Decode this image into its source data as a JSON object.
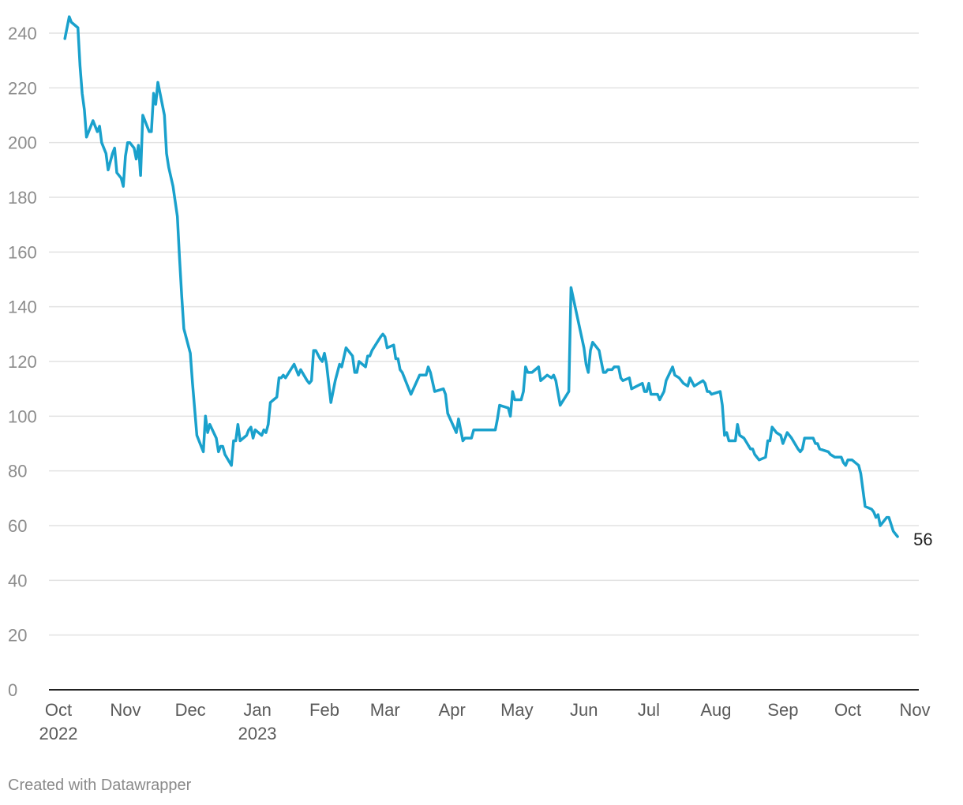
{
  "chart_data": {
    "type": "line",
    "title": "",
    "xlabel": "",
    "ylabel": "",
    "ylim": [
      0,
      250
    ],
    "yticks": [
      "0",
      "20",
      "40",
      "60",
      "80",
      "100",
      "120",
      "140",
      "160",
      "180",
      "200",
      "220",
      "240"
    ],
    "xticks": [
      {
        "label": "Oct",
        "year": "2022",
        "day": 0
      },
      {
        "label": "Nov",
        "year": "",
        "day": 31
      },
      {
        "label": "Dec",
        "year": "",
        "day": 61
      },
      {
        "label": "Jan",
        "year": "2023",
        "day": 92
      },
      {
        "label": "Feb",
        "year": "",
        "day": 123
      },
      {
        "label": "Mar",
        "year": "",
        "day": 151
      },
      {
        "label": "Apr",
        "year": "",
        "day": 182
      },
      {
        "label": "May",
        "year": "",
        "day": 212
      },
      {
        "label": "Jun",
        "year": "",
        "day": 243
      },
      {
        "label": "Jul",
        "year": "",
        "day": 273
      },
      {
        "label": "Aug",
        "year": "",
        "day": 304
      },
      {
        "label": "Sep",
        "year": "",
        "day": 335
      },
      {
        "label": "Oct",
        "year": "",
        "day": 365
      },
      {
        "label": "Nov",
        "year": "",
        "day": 396
      }
    ],
    "x_unit": "days since 2022-10-01",
    "line_color": "#1aa1cc",
    "end_label": "56",
    "series": [
      {
        "name": "value",
        "points": [
          [
            3,
            238
          ],
          [
            5,
            246
          ],
          [
            6,
            244
          ],
          [
            9,
            242
          ],
          [
            10,
            228
          ],
          [
            11,
            218
          ],
          [
            12,
            212
          ],
          [
            13,
            202
          ],
          [
            16,
            208
          ],
          [
            18,
            204
          ],
          [
            19,
            206
          ],
          [
            20,
            200
          ],
          [
            22,
            196
          ],
          [
            23,
            190
          ],
          [
            25,
            196
          ],
          [
            26,
            198
          ],
          [
            27,
            189
          ],
          [
            29,
            187
          ],
          [
            30,
            184
          ],
          [
            31,
            195
          ],
          [
            32,
            200
          ],
          [
            33,
            200
          ],
          [
            35,
            198
          ],
          [
            36,
            194
          ],
          [
            37,
            199
          ],
          [
            38,
            188
          ],
          [
            39,
            210
          ],
          [
            40,
            208
          ],
          [
            41,
            206
          ],
          [
            42,
            204
          ],
          [
            43,
            204
          ],
          [
            44,
            218
          ],
          [
            45,
            214
          ],
          [
            46,
            222
          ],
          [
            47,
            218
          ],
          [
            49,
            210
          ],
          [
            50,
            196
          ],
          [
            51,
            191
          ],
          [
            53,
            184
          ],
          [
            55,
            173
          ],
          [
            56,
            158
          ],
          [
            57,
            144
          ],
          [
            58,
            132
          ],
          [
            61,
            123
          ],
          [
            62,
            112
          ],
          [
            64,
            93
          ],
          [
            67,
            87
          ],
          [
            68,
            100
          ],
          [
            69,
            94
          ],
          [
            70,
            97
          ],
          [
            73,
            92
          ],
          [
            74,
            87
          ],
          [
            75,
            89
          ],
          [
            76,
            89
          ],
          [
            77,
            86
          ],
          [
            80,
            82
          ],
          [
            81,
            91
          ],
          [
            82,
            91
          ],
          [
            83,
            97
          ],
          [
            84,
            91
          ],
          [
            87,
            93
          ],
          [
            88,
            95
          ],
          [
            89,
            96
          ],
          [
            90,
            92
          ],
          [
            91,
            95
          ],
          [
            94,
            93
          ],
          [
            95,
            95
          ],
          [
            96,
            94
          ],
          [
            97,
            97
          ],
          [
            98,
            105
          ],
          [
            101,
            107
          ],
          [
            102,
            114
          ],
          [
            103,
            114
          ],
          [
            104,
            115
          ],
          [
            105,
            114
          ],
          [
            109,
            119
          ],
          [
            111,
            115
          ],
          [
            112,
            117
          ],
          [
            115,
            113
          ],
          [
            116,
            112
          ],
          [
            117,
            113
          ],
          [
            118,
            124
          ],
          [
            119,
            124
          ],
          [
            121,
            121
          ],
          [
            122,
            120
          ],
          [
            123,
            123
          ],
          [
            124,
            119
          ],
          [
            126,
            105
          ],
          [
            128,
            113
          ],
          [
            130,
            119
          ],
          [
            131,
            118
          ],
          [
            133,
            125
          ],
          [
            136,
            122
          ],
          [
            137,
            116
          ],
          [
            138,
            116
          ],
          [
            139,
            120
          ],
          [
            142,
            118
          ],
          [
            143,
            122
          ],
          [
            144,
            122
          ],
          [
            145,
            124
          ],
          [
            149,
            129
          ],
          [
            150,
            130
          ],
          [
            151,
            129
          ],
          [
            152,
            125
          ],
          [
            155,
            126
          ],
          [
            156,
            121
          ],
          [
            157,
            121
          ],
          [
            158,
            117
          ],
          [
            159,
            116
          ],
          [
            163,
            108
          ],
          [
            167,
            115
          ],
          [
            170,
            115
          ],
          [
            171,
            118
          ],
          [
            172,
            116
          ],
          [
            174,
            109
          ],
          [
            178,
            110
          ],
          [
            179,
            108
          ],
          [
            180,
            101
          ],
          [
            184,
            94
          ],
          [
            185,
            99
          ],
          [
            187,
            91
          ],
          [
            188,
            92
          ],
          [
            191,
            92
          ],
          [
            192,
            95
          ],
          [
            202,
            95
          ],
          [
            203,
            99
          ],
          [
            204,
            104
          ],
          [
            208,
            103
          ],
          [
            209,
            100
          ],
          [
            210,
            109
          ],
          [
            211,
            106
          ],
          [
            214,
            106
          ],
          [
            215,
            109
          ],
          [
            216,
            118
          ],
          [
            217,
            116
          ],
          [
            219,
            116
          ],
          [
            222,
            118
          ],
          [
            223,
            113
          ],
          [
            226,
            115
          ],
          [
            228,
            114
          ],
          [
            229,
            115
          ],
          [
            230,
            113
          ],
          [
            232,
            104
          ],
          [
            236,
            109
          ],
          [
            237,
            147
          ],
          [
            243,
            125
          ],
          [
            244,
            119
          ],
          [
            245,
            116
          ],
          [
            246,
            124
          ],
          [
            247,
            127
          ],
          [
            250,
            124
          ],
          [
            251,
            120
          ],
          [
            252,
            116
          ],
          [
            253,
            116
          ],
          [
            254,
            117
          ],
          [
            256,
            117
          ],
          [
            257,
            118
          ],
          [
            259,
            118
          ],
          [
            260,
            114
          ],
          [
            261,
            113
          ],
          [
            264,
            114
          ],
          [
            265,
            110
          ],
          [
            270,
            112
          ],
          [
            271,
            109
          ],
          [
            272,
            109
          ],
          [
            273,
            112
          ],
          [
            274,
            108
          ],
          [
            277,
            108
          ],
          [
            278,
            106
          ],
          [
            280,
            109
          ],
          [
            281,
            113
          ],
          [
            284,
            118
          ],
          [
            285,
            115
          ],
          [
            287,
            114
          ],
          [
            289,
            112
          ],
          [
            291,
            111
          ],
          [
            292,
            114
          ],
          [
            294,
            111
          ],
          [
            298,
            113
          ],
          [
            299,
            112
          ],
          [
            300,
            109
          ],
          [
            301,
            109
          ],
          [
            302,
            108
          ],
          [
            306,
            109
          ],
          [
            307,
            104
          ],
          [
            308,
            93
          ],
          [
            309,
            94
          ],
          [
            310,
            91
          ],
          [
            313,
            91
          ],
          [
            314,
            97
          ],
          [
            315,
            93
          ],
          [
            317,
            92
          ],
          [
            320,
            88
          ],
          [
            321,
            88
          ],
          [
            322,
            86
          ],
          [
            324,
            84
          ],
          [
            327,
            85
          ],
          [
            328,
            91
          ],
          [
            329,
            91
          ],
          [
            330,
            96
          ],
          [
            332,
            94
          ],
          [
            334,
            93
          ],
          [
            335,
            90
          ],
          [
            337,
            94
          ],
          [
            339,
            92
          ],
          [
            342,
            88
          ],
          [
            343,
            87
          ],
          [
            344,
            88
          ],
          [
            345,
            92
          ],
          [
            349,
            92
          ],
          [
            350,
            90
          ],
          [
            351,
            90
          ],
          [
            352,
            88
          ],
          [
            356,
            87
          ],
          [
            357,
            86
          ],
          [
            359,
            85
          ],
          [
            362,
            85
          ],
          [
            363,
            83
          ],
          [
            364,
            82
          ],
          [
            365,
            84
          ],
          [
            367,
            84
          ],
          [
            370,
            82
          ],
          [
            371,
            79
          ],
          [
            373,
            67
          ],
          [
            376,
            66
          ],
          [
            377,
            65
          ],
          [
            378,
            63
          ],
          [
            379,
            64
          ],
          [
            380,
            60
          ],
          [
            383,
            63
          ],
          [
            384,
            63
          ],
          [
            386,
            58
          ],
          [
            387,
            57
          ],
          [
            388,
            56
          ]
        ]
      }
    ]
  },
  "footer": {
    "credit": "Created with Datawrapper"
  }
}
